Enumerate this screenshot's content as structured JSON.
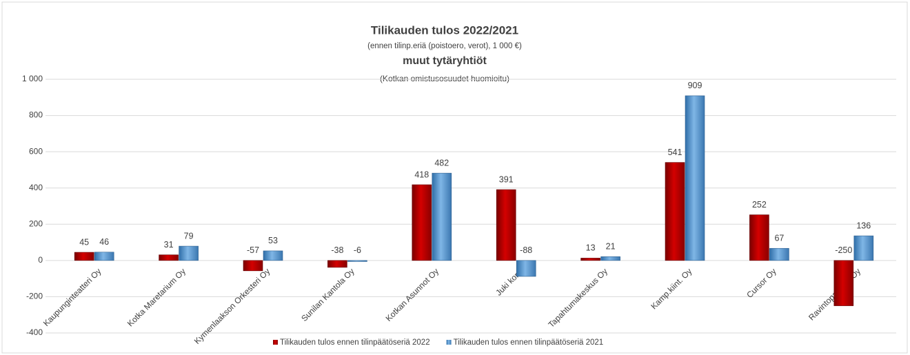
{
  "chart_data": {
    "type": "bar",
    "title": "Tilikauden tulos  2022/2021",
    "subtitle": "(ennen tilinp.eriä (poistoero, verot), 1 000 €)",
    "title2": "muut tytäryhtiöt",
    "subtitle2": "(Kotkan omistusosuudet huomioitu)",
    "categories": [
      "Kaupunginteatteri Oy",
      "Kotka Maretarium Oy",
      "Kymenlaakson Orkesteri Oy",
      "Sunilan Kantola Oy",
      "Kotkan Asunnot Oy",
      "Juki kons",
      "Tapahtumakeskus Oy",
      "Kamp.kiint. Oy",
      "Cursor Oy",
      "Ravintopalvelut Oy"
    ],
    "series": [
      {
        "name": "Tilikauden tulos ennen tilinpäätöseriä 2022",
        "color": "#c00000",
        "values": [
          45,
          31,
          -57,
          -38,
          418,
          391,
          13,
          541,
          252,
          -250
        ]
      },
      {
        "name": "Tilikauden tulos ennen tilinpäätöseriä 2021",
        "color": "#5b9bd5",
        "values": [
          46,
          79,
          53,
          -6,
          482,
          -88,
          21,
          909,
          67,
          136
        ]
      }
    ],
    "ylim": [
      -400,
      1000
    ],
    "yticks": [
      -400,
      -200,
      0,
      200,
      400,
      600,
      800,
      {
        "value": 1000,
        "label": "1 000"
      }
    ],
    "grid": true
  }
}
